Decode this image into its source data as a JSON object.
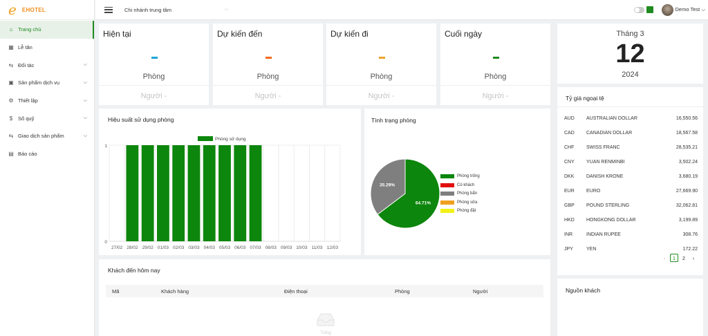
{
  "app": {
    "logo_mark": "e",
    "name": "EHOTEL"
  },
  "sidebar": {
    "items": [
      {
        "label": "Trang chủ",
        "icon": "home-icon",
        "active": true,
        "has_submenu": false
      },
      {
        "label": "Lễ tân",
        "icon": "grid-icon",
        "active": false,
        "has_submenu": false
      },
      {
        "label": "Đối tác",
        "icon": "swap-icon",
        "active": false,
        "has_submenu": true
      },
      {
        "label": "Sản phẩm dịch vụ",
        "icon": "box-icon",
        "active": false,
        "has_submenu": true
      },
      {
        "label": "Thiết lập",
        "icon": "gear-icon",
        "active": false,
        "has_submenu": true
      },
      {
        "label": "Sổ quỹ",
        "icon": "dollar-icon",
        "active": false,
        "has_submenu": true
      },
      {
        "label": "Giao dịch sản phẩm",
        "icon": "swap-icon",
        "active": false,
        "has_submenu": true
      },
      {
        "label": "Báo cáo",
        "icon": "doc-icon",
        "active": false,
        "has_submenu": false
      }
    ]
  },
  "topbar": {
    "branch": "Chi nhánh trung tâm",
    "user": "Demo Test"
  },
  "stats": [
    {
      "title": "Hiện tại",
      "dash": "-",
      "rooms_label": "Phòng",
      "people_label": "Người -",
      "color": "#1ea5d8"
    },
    {
      "title": "Dự kiến đến",
      "dash": "-",
      "rooms_label": "Phòng",
      "people_label": "Người -",
      "color": "#f26a1b"
    },
    {
      "title": "Dự kiến đi",
      "dash": "-",
      "rooms_label": "Phòng",
      "people_label": "Người -",
      "color": "#f0a32a"
    },
    {
      "title": "Cuối ngày",
      "dash": "-",
      "rooms_label": "Phòng",
      "people_label": "Người -",
      "color": "#1f8a1f"
    }
  ],
  "date": {
    "month": "Tháng 3",
    "day": "12",
    "year": "2024"
  },
  "fx": {
    "title": "Tỷ giá ngoại tệ",
    "rows": [
      {
        "code": "AUD",
        "name": "AUSTRALIAN DOLLAR",
        "rate": "16,550.56"
      },
      {
        "code": "CAD",
        "name": "CANADIAN DOLLAR",
        "rate": "18,567.58"
      },
      {
        "code": "CHF",
        "name": "SWISS FRANC",
        "rate": "28,535.21"
      },
      {
        "code": "CNY",
        "name": "YUAN RENMINBI",
        "rate": "3,502.24"
      },
      {
        "code": "DKK",
        "name": "DANISH KRONE",
        "rate": "3,680.19"
      },
      {
        "code": "EUR",
        "name": "EURO",
        "rate": "27,669.90"
      },
      {
        "code": "GBP",
        "name": "POUND STERLING",
        "rate": "32,062.81"
      },
      {
        "code": "HKD",
        "name": "HONGKONG DOLLAR",
        "rate": "3,199.89"
      },
      {
        "code": "INR",
        "name": "INDIAN RUPEE",
        "rate": "308.76"
      },
      {
        "code": "JPY",
        "name": "YEN",
        "rate": "172.22"
      }
    ],
    "pager": {
      "prev": "‹",
      "pages": [
        "1",
        "2"
      ],
      "current": "1",
      "next": "›"
    }
  },
  "usage_chart": {
    "title": "Hiệu suất sử dụng phòng"
  },
  "status_chart": {
    "title": "Tình trạng phòng"
  },
  "arrivals": {
    "title": "Khách đến hôm nay",
    "columns": [
      "Mã",
      "Khách hàng",
      "Điện thoại",
      "Phòng",
      "Người"
    ],
    "empty_text": "Trống"
  },
  "sources": {
    "title": "Nguồn khách"
  },
  "chart_data": [
    {
      "type": "bar",
      "categories": [
        "27/02",
        "28/02",
        "29/02",
        "01/03",
        "02/03",
        "03/03",
        "04/03",
        "05/03",
        "06/03",
        "07/03",
        "08/03",
        "09/03",
        "10/03",
        "11/03",
        "12/03"
      ],
      "series": [
        {
          "name": "Phòng sử dụng",
          "values": [
            0,
            1,
            1,
            1,
            1,
            1,
            1,
            1,
            1,
            1,
            0,
            0,
            0,
            0,
            0
          ],
          "color": "#0c860c"
        }
      ],
      "title": "Hiệu suất sử dụng phòng",
      "ylim": [
        0,
        1
      ],
      "yticks": [
        "0",
        "1"
      ],
      "legend": "top",
      "grid": true
    },
    {
      "type": "pie",
      "title": "Tình trạng phòng",
      "labels": [
        "Phòng trống",
        "Có khách",
        "Phòng bẩn",
        "Phòng sửa",
        "Phòng đặt"
      ],
      "values": [
        64.71,
        0,
        35.29,
        0,
        0
      ],
      "value_labels": [
        "64.71%",
        "",
        "35.29%",
        "",
        ""
      ],
      "colors": [
        "#0c860c",
        "#e01010",
        "#7f7f7f",
        "#f0a020",
        "#f2f21a"
      ],
      "legend": "right"
    }
  ]
}
